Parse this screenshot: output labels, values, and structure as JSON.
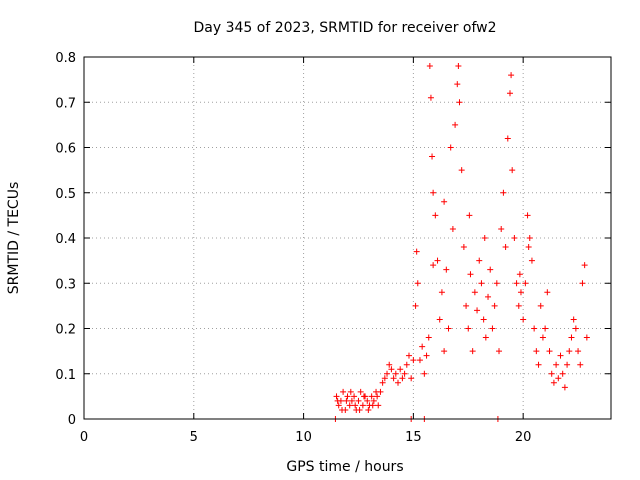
{
  "chart_data": {
    "type": "scatter",
    "title": "Day 345 of 2023, SRMTID for receiver ofw2",
    "xlabel": "GPS time / hours",
    "ylabel": "SRMTID / TECUs",
    "xlim": [
      0,
      24
    ],
    "ylim": [
      0,
      0.8
    ],
    "xticks": [
      0,
      5,
      10,
      15,
      20
    ],
    "yticks": [
      0,
      0.1,
      0.2,
      0.3,
      0.4,
      0.5,
      0.6,
      0.7,
      0.8
    ],
    "xtick_labels": [
      "0",
      "5",
      "10",
      "15",
      "20"
    ],
    "ytick_labels": [
      "0",
      "0.1",
      "0.2",
      "0.3",
      "0.4",
      "0.5",
      "0.6",
      "0.7",
      "0.8"
    ],
    "grid": true,
    "marker": "+",
    "series": [
      {
        "name": "SRMTID",
        "color": "#ff0000",
        "points": [
          [
            11.5,
            0.05
          ],
          [
            11.6,
            0.03
          ],
          [
            11.7,
            0.04
          ],
          [
            11.8,
            0.06
          ],
          [
            11.9,
            0.02
          ],
          [
            12.0,
            0.05
          ],
          [
            12.1,
            0.03
          ],
          [
            12.2,
            0.04
          ],
          [
            12.3,
            0.05
          ],
          [
            12.4,
            0.02
          ],
          [
            12.5,
            0.04
          ],
          [
            12.6,
            0.06
          ],
          [
            12.7,
            0.03
          ],
          [
            12.8,
            0.05
          ],
          [
            12.9,
            0.04
          ],
          [
            13.0,
            0.03
          ],
          [
            13.1,
            0.05
          ],
          [
            13.2,
            0.04
          ],
          [
            13.3,
            0.06
          ],
          [
            13.4,
            0.03
          ],
          [
            11.55,
            0.04
          ],
          [
            11.75,
            0.02
          ],
          [
            11.95,
            0.04
          ],
          [
            12.15,
            0.06
          ],
          [
            12.35,
            0.03
          ],
          [
            12.55,
            0.02
          ],
          [
            12.75,
            0.05
          ],
          [
            12.95,
            0.02
          ],
          [
            13.15,
            0.03
          ],
          [
            13.35,
            0.05
          ],
          [
            13.5,
            0.06
          ],
          [
            13.6,
            0.08
          ],
          [
            13.7,
            0.09
          ],
          [
            13.8,
            0.1
          ],
          [
            13.9,
            0.12
          ],
          [
            14.0,
            0.11
          ],
          [
            14.1,
            0.09
          ],
          [
            14.2,
            0.1
          ],
          [
            14.3,
            0.08
          ],
          [
            14.4,
            0.11
          ],
          [
            14.5,
            0.09
          ],
          [
            14.6,
            0.1
          ],
          [
            14.7,
            0.12
          ],
          [
            14.8,
            0.14
          ],
          [
            14.9,
            0.09
          ],
          [
            15.0,
            0.13
          ],
          [
            15.1,
            0.25
          ],
          [
            15.15,
            0.37
          ],
          [
            15.2,
            0.3
          ],
          [
            15.3,
            0.13
          ],
          [
            15.4,
            0.16
          ],
          [
            15.5,
            0.1
          ],
          [
            15.6,
            0.14
          ],
          [
            15.7,
            0.18
          ],
          [
            15.75,
            0.78
          ],
          [
            15.8,
            0.71
          ],
          [
            15.85,
            0.58
          ],
          [
            15.9,
            0.5
          ],
          [
            16.0,
            0.45
          ],
          [
            16.1,
            0.35
          ],
          [
            16.2,
            0.22
          ],
          [
            16.3,
            0.28
          ],
          [
            16.4,
            0.15
          ],
          [
            16.5,
            0.33
          ],
          [
            16.6,
            0.2
          ],
          [
            16.7,
            0.6
          ],
          [
            16.8,
            0.42
          ],
          [
            16.9,
            0.65
          ],
          [
            17.0,
            0.74
          ],
          [
            17.05,
            0.78
          ],
          [
            17.1,
            0.7
          ],
          [
            17.2,
            0.55
          ],
          [
            17.3,
            0.38
          ],
          [
            17.4,
            0.25
          ],
          [
            17.5,
            0.2
          ],
          [
            17.6,
            0.32
          ],
          [
            17.7,
            0.15
          ],
          [
            17.8,
            0.28
          ],
          [
            17.9,
            0.24
          ],
          [
            18.0,
            0.35
          ],
          [
            18.1,
            0.3
          ],
          [
            18.2,
            0.22
          ],
          [
            18.3,
            0.18
          ],
          [
            18.4,
            0.27
          ],
          [
            18.5,
            0.33
          ],
          [
            18.6,
            0.2
          ],
          [
            18.7,
            0.25
          ],
          [
            18.8,
            0.3
          ],
          [
            18.9,
            0.15
          ],
          [
            19.0,
            0.42
          ],
          [
            19.1,
            0.5
          ],
          [
            19.2,
            0.38
          ],
          [
            19.3,
            0.62
          ],
          [
            19.4,
            0.72
          ],
          [
            19.45,
            0.76
          ],
          [
            19.5,
            0.55
          ],
          [
            19.6,
            0.4
          ],
          [
            19.7,
            0.3
          ],
          [
            19.8,
            0.25
          ],
          [
            19.9,
            0.28
          ],
          [
            20.0,
            0.22
          ],
          [
            20.1,
            0.3
          ],
          [
            20.2,
            0.45
          ],
          [
            20.3,
            0.4
          ],
          [
            20.4,
            0.35
          ],
          [
            20.5,
            0.2
          ],
          [
            20.6,
            0.15
          ],
          [
            20.7,
            0.12
          ],
          [
            20.8,
            0.25
          ],
          [
            20.9,
            0.18
          ],
          [
            21.0,
            0.2
          ],
          [
            21.1,
            0.28
          ],
          [
            21.2,
            0.15
          ],
          [
            21.3,
            0.1
          ],
          [
            21.4,
            0.08
          ],
          [
            21.5,
            0.12
          ],
          [
            21.6,
            0.09
          ],
          [
            21.7,
            0.14
          ],
          [
            21.8,
            0.1
          ],
          [
            21.9,
            0.07
          ],
          [
            22.0,
            0.12
          ],
          [
            22.1,
            0.15
          ],
          [
            22.2,
            0.18
          ],
          [
            22.3,
            0.22
          ],
          [
            22.4,
            0.2
          ],
          [
            22.5,
            0.15
          ],
          [
            22.6,
            0.12
          ],
          [
            22.7,
            0.3
          ],
          [
            22.8,
            0.34
          ],
          [
            22.9,
            0.18
          ],
          [
            11.45,
            0.0
          ],
          [
            14.9,
            0.0
          ],
          [
            15.5,
            0.0
          ],
          [
            18.85,
            0.0
          ],
          [
            16.4,
            0.48
          ],
          [
            18.25,
            0.4
          ],
          [
            20.25,
            0.38
          ],
          [
            17.55,
            0.45
          ],
          [
            15.9,
            0.34
          ],
          [
            19.85,
            0.32
          ]
        ]
      }
    ]
  }
}
